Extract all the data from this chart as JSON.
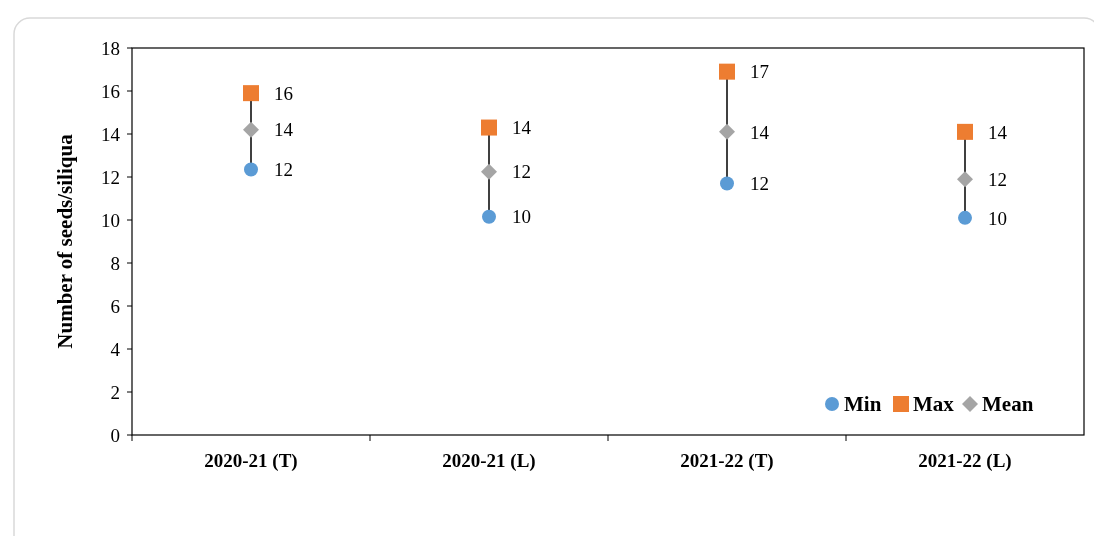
{
  "chart_data": {
    "type": "scatter",
    "ylabel": "Number of seeds/siliqua",
    "categories": [
      "2020-21 (T)",
      "2020-21 (L)",
      "2021-22 (T)",
      "2021-22 (L)"
    ],
    "ylim": [
      0,
      18
    ],
    "yticks": [
      0,
      2,
      4,
      6,
      8,
      10,
      12,
      14,
      16,
      18
    ],
    "grid": false,
    "legend": "bottom right",
    "series": [
      {
        "name": "Min",
        "color": "#5b9bd5",
        "marker": "circle",
        "values": [
          12.35,
          10.15,
          11.7,
          10.1
        ],
        "value_labels": [
          "12",
          "10",
          "12",
          "10"
        ]
      },
      {
        "name": "Max",
        "color": "#ed7d31",
        "marker": "square",
        "values": [
          15.9,
          14.3,
          16.9,
          14.1
        ],
        "value_labels": [
          "16",
          "14",
          "17",
          "14"
        ]
      },
      {
        "name": "Mean",
        "color": "#a5a5a5",
        "marker": "diamond",
        "values": [
          14.2,
          12.25,
          14.1,
          11.9
        ],
        "value_labels": [
          "14",
          "12",
          "14",
          "12"
        ]
      }
    ]
  }
}
